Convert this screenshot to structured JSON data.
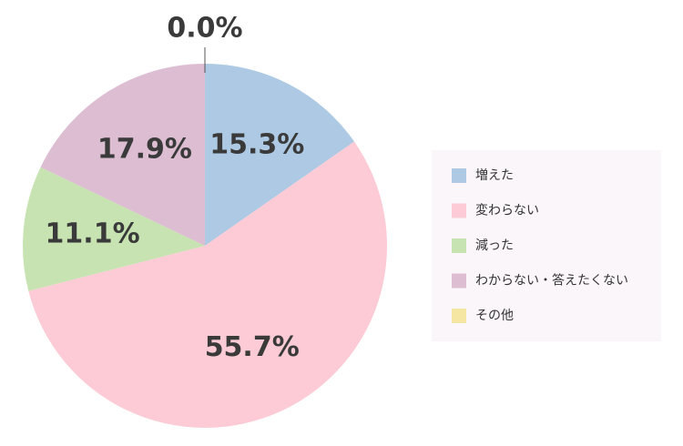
{
  "chart_data": {
    "type": "pie",
    "categories": [
      "増えた",
      "変わらない",
      "減った",
      "わからない・答えたくない",
      "その他"
    ],
    "values": [
      15.3,
      55.7,
      11.1,
      17.9,
      0.0
    ],
    "value_labels": [
      "15.3%",
      "55.7%",
      "11.1%",
      "17.9%",
      "0.0%"
    ],
    "colors": [
      "#adc9e3",
      "#fccbd6",
      "#c7e3b1",
      "#dcbdd2",
      "#f6e6a3"
    ],
    "legend": "right"
  }
}
